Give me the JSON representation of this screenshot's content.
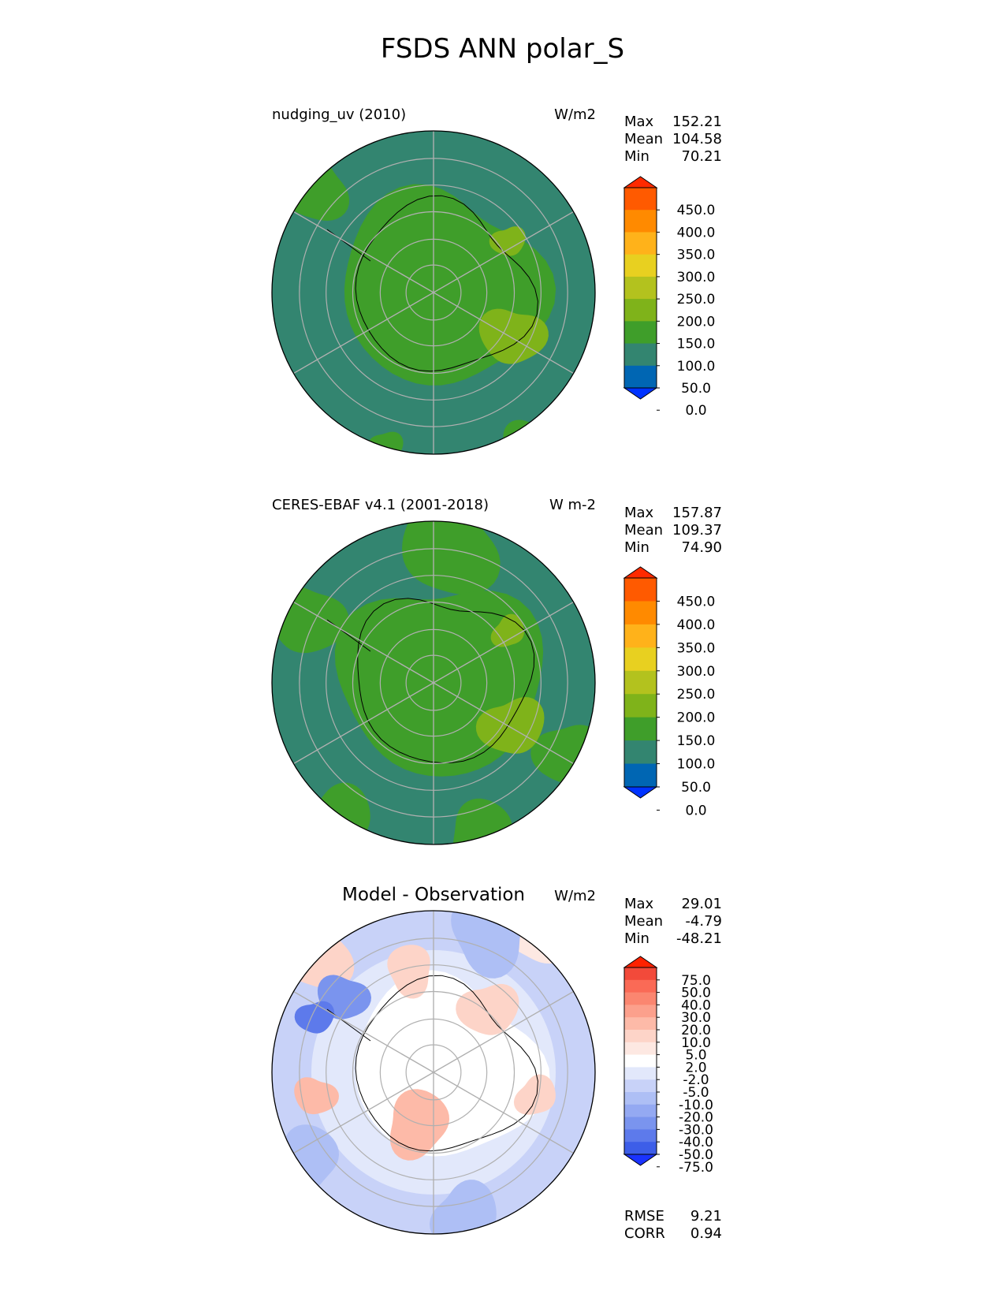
{
  "title": "FSDS ANN polar_S",
  "panels": [
    {
      "left_title": "nudging_uv (2010)",
      "right_title": "W/m2",
      "stats": [
        {
          "label": "Max",
          "value": "152.21"
        },
        {
          "label": "Mean",
          "value": "104.58"
        },
        {
          "label": "Min",
          "value": "70.21"
        }
      ]
    },
    {
      "left_title": "CERES-EBAF v4.1 (2001-2018)",
      "right_title": "W m-2",
      "stats": [
        {
          "label": "Max",
          "value": "157.87"
        },
        {
          "label": "Mean",
          "value": "109.37"
        },
        {
          "label": "Min",
          "value": "74.90"
        }
      ]
    },
    {
      "center_title": "Model - Observation",
      "right_title": "W/m2",
      "stats": [
        {
          "label": "Max",
          "value": "29.01"
        },
        {
          "label": "Mean",
          "value": "-4.79"
        },
        {
          "label": "Min",
          "value": "-48.21"
        }
      ],
      "metrics": [
        {
          "label": "RMSE",
          "value": "9.21"
        },
        {
          "label": "CORR",
          "value": "0.94"
        }
      ]
    }
  ],
  "colorbars": {
    "absolute": {
      "ticks": [
        "450.0",
        "400.0",
        "350.0",
        "300.0",
        "250.0",
        "200.0",
        "150.0",
        "100.0",
        "50.0",
        "0.0"
      ],
      "colors": [
        "#ff2a00",
        "#ff5a00",
        "#ff8a00",
        "#ffb21a",
        "#e8d020",
        "#b3c21e",
        "#7fb31a",
        "#3f9e2a",
        "#338570",
        "#0066b3",
        "#0033ff"
      ]
    },
    "difference": {
      "ticks": [
        "75.0",
        "50.0",
        "40.0",
        "30.0",
        "20.0",
        "10.0",
        "5.0",
        "2.0",
        "-2.0",
        "-5.0",
        "-10.0",
        "-20.0",
        "-30.0",
        "-40.0",
        "-50.0",
        "-75.0"
      ],
      "colors": [
        "#ff2200",
        "#f24a3a",
        "#fa6a56",
        "#fb8670",
        "#fca08c",
        "#fdbaa8",
        "#fdd4c8",
        "#fde8e2",
        "#ffffff",
        "#e2e8fb",
        "#c8d2f8",
        "#aebff5",
        "#94a9f2",
        "#7a94ee",
        "#5d7aeb",
        "#3d5ee8",
        "#1a33ff"
      ]
    }
  },
  "chart_data": [
    {
      "type": "heatmap",
      "projection": "south-polar-stereographic",
      "title": "nudging_uv (2010)",
      "units": "W/m2",
      "summary": {
        "max": 152.21,
        "mean": 104.58,
        "min": 70.21
      },
      "levels": [
        0,
        50,
        100,
        150,
        200,
        250,
        300,
        350,
        400,
        450
      ],
      "grid": true
    },
    {
      "type": "heatmap",
      "projection": "south-polar-stereographic",
      "title": "CERES-EBAF v4.1 (2001-2018)",
      "units": "W m-2",
      "summary": {
        "max": 157.87,
        "mean": 109.37,
        "min": 74.9
      },
      "levels": [
        0,
        50,
        100,
        150,
        200,
        250,
        300,
        350,
        400,
        450
      ],
      "grid": true
    },
    {
      "type": "heatmap",
      "projection": "south-polar-stereographic",
      "title": "Model - Observation",
      "units": "W/m2",
      "summary": {
        "max": 29.01,
        "mean": -4.79,
        "min": -48.21,
        "rmse": 9.21,
        "corr": 0.94
      },
      "levels": [
        -75,
        -50,
        -40,
        -30,
        -20,
        -10,
        -5,
        -2,
        2,
        5,
        10,
        20,
        30,
        40,
        50,
        75
      ],
      "grid": true
    }
  ]
}
